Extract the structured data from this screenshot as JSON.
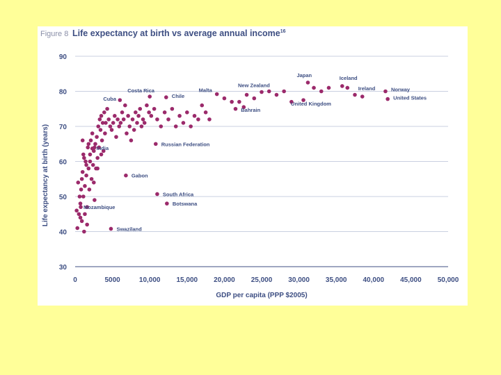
{
  "figure_label": "Figure 8",
  "title_main": "Life expectancy at birth vs average annual income",
  "title_sup": "16",
  "colors": {
    "background": "#ffff99",
    "panel": "#ffffff",
    "dot": "#9b2a6b",
    "text": "#3d4e82",
    "grid": "#c9cfe0"
  },
  "chart_data": {
    "type": "scatter",
    "title": "Life expectancy at birth vs average annual income",
    "xlabel": "GDP per capita (PPP $2005)",
    "ylabel": "Life expectancy at birth (years)",
    "xlim": [
      0,
      50000
    ],
    "ylim": [
      30,
      90
    ],
    "x_ticks": [
      0,
      5000,
      10000,
      15000,
      20000,
      25000,
      30000,
      35000,
      40000,
      45000,
      50000
    ],
    "x_tick_labels": [
      "0",
      "5000",
      "10,000",
      "15,000",
      "20,000",
      "25,000",
      "30,000",
      "35,000",
      "40,000",
      "45,000",
      "50,000"
    ],
    "y_ticks": [
      30,
      40,
      50,
      60,
      70,
      80,
      90
    ],
    "y_tick_labels": [
      "30",
      "40",
      "50",
      "60",
      "70",
      "80",
      "90"
    ],
    "grid": "horizontal",
    "labeled_points": [
      {
        "name": "Costa Rica",
        "x": 10000,
        "y": 78.5
      },
      {
        "name": "Cuba",
        "x": 6000,
        "y": 77.5
      },
      {
        "name": "Chile",
        "x": 12200,
        "y": 78.3
      },
      {
        "name": "Malta",
        "x": 19000,
        "y": 79.2
      },
      {
        "name": "New Zealand",
        "x": 25000,
        "y": 79.8
      },
      {
        "name": "Japan",
        "x": 31200,
        "y": 82.5
      },
      {
        "name": "Iceland",
        "x": 35800,
        "y": 81.5
      },
      {
        "name": "Ireland",
        "x": 38500,
        "y": 78.5
      },
      {
        "name": "Norway",
        "x": 41600,
        "y": 80.0
      },
      {
        "name": "United States",
        "x": 41900,
        "y": 77.8
      },
      {
        "name": "Bahrain",
        "x": 22600,
        "y": 75.5
      },
      {
        "name": "United Kingdom",
        "x": 30600,
        "y": 77.5
      },
      {
        "name": "India",
        "x": 2300,
        "y": 63.7
      },
      {
        "name": "Russian Federation",
        "x": 10800,
        "y": 65.0
      },
      {
        "name": "Gabon",
        "x": 6800,
        "y": 56.0
      },
      {
        "name": "South Africa",
        "x": 11000,
        "y": 50.7
      },
      {
        "name": "Botswana",
        "x": 12300,
        "y": 48.0
      },
      {
        "name": "Mozambique",
        "x": 750,
        "y": 47.0
      },
      {
        "name": "Swaziland",
        "x": 4800,
        "y": 40.8
      }
    ],
    "points": [
      [
        200,
        46
      ],
      [
        300,
        41
      ],
      [
        400,
        54
      ],
      [
        500,
        45
      ],
      [
        600,
        50
      ],
      [
        700,
        48
      ],
      [
        800,
        52
      ],
      [
        900,
        43
      ],
      [
        1000,
        57
      ],
      [
        1100,
        62
      ],
      [
        1200,
        40
      ],
      [
        1300,
        53
      ],
      [
        1400,
        60
      ],
      [
        1500,
        56
      ],
      [
        1600,
        47
      ],
      [
        1700,
        64
      ],
      [
        1800,
        58
      ],
      [
        1900,
        52
      ],
      [
        2000,
        62
      ],
      [
        2100,
        66
      ],
      [
        2200,
        55
      ],
      [
        2300,
        68
      ],
      [
        2400,
        59
      ],
      [
        2500,
        63
      ],
      [
        2600,
        49
      ],
      [
        2700,
        65
      ],
      [
        2800,
        58
      ],
      [
        2900,
        67
      ],
      [
        3000,
        61
      ],
      [
        3100,
        70
      ],
      [
        3200,
        64
      ],
      [
        3300,
        72
      ],
      [
        3400,
        69
      ],
      [
        3500,
        73
      ],
      [
        3600,
        66
      ],
      [
        3700,
        71
      ],
      [
        3800,
        63
      ],
      [
        3900,
        74
      ],
      [
        4000,
        68
      ],
      [
        4100,
        71
      ],
      [
        4300,
        75
      ],
      [
        4500,
        72
      ],
      [
        4700,
        70
      ],
      [
        4900,
        69
      ],
      [
        5100,
        71
      ],
      [
        5300,
        73
      ],
      [
        5500,
        67
      ],
      [
        5700,
        72
      ],
      [
        5900,
        70
      ],
      [
        6100,
        71
      ],
      [
        6300,
        74
      ],
      [
        6500,
        72
      ],
      [
        6700,
        76
      ],
      [
        6900,
        68
      ],
      [
        7100,
        73
      ],
      [
        7300,
        70
      ],
      [
        7500,
        66
      ],
      [
        7700,
        72
      ],
      [
        7900,
        69
      ],
      [
        8100,
        74
      ],
      [
        8300,
        71
      ],
      [
        8500,
        73
      ],
      [
        8700,
        75
      ],
      [
        8900,
        70
      ],
      [
        9100,
        72
      ],
      [
        9300,
        71
      ],
      [
        9600,
        76
      ],
      [
        9900,
        74
      ],
      [
        10200,
        73
      ],
      [
        10600,
        75
      ],
      [
        11000,
        72
      ],
      [
        11500,
        70
      ],
      [
        12000,
        74
      ],
      [
        12500,
        72
      ],
      [
        13000,
        75
      ],
      [
        13500,
        70
      ],
      [
        14000,
        73
      ],
      [
        14500,
        71
      ],
      [
        15000,
        74
      ],
      [
        15500,
        70
      ],
      [
        16000,
        73
      ],
      [
        16500,
        72
      ],
      [
        17000,
        76
      ],
      [
        17500,
        74
      ],
      [
        18000,
        72
      ],
      [
        20000,
        78
      ],
      [
        21000,
        77
      ],
      [
        21500,
        75
      ],
      [
        22000,
        77
      ],
      [
        23000,
        79
      ],
      [
        24000,
        78
      ],
      [
        26000,
        80
      ],
      [
        27000,
        79
      ],
      [
        28000,
        80
      ],
      [
        29000,
        77
      ],
      [
        32000,
        81
      ],
      [
        33000,
        80
      ],
      [
        34000,
        81
      ],
      [
        36500,
        81
      ],
      [
        37500,
        79
      ],
      [
        1000,
        66
      ],
      [
        1200,
        61
      ],
      [
        1500,
        59
      ],
      [
        1800,
        65
      ],
      [
        2000,
        60
      ],
      [
        2600,
        64
      ],
      [
        3000,
        58
      ],
      [
        3500,
        62
      ],
      [
        1300,
        45
      ],
      [
        1600,
        42
      ],
      [
        900,
        55
      ],
      [
        1100,
        50
      ],
      [
        2500,
        54
      ],
      [
        700,
        44
      ]
    ]
  }
}
